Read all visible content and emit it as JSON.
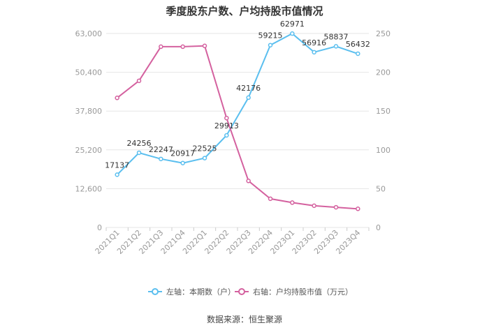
{
  "chart_data": {
    "type": "line",
    "title": "季度股东户数、户均持股市值情况",
    "categories": [
      "2021Q1",
      "2021Q2",
      "2021Q3",
      "2021Q4",
      "2022Q1",
      "2022Q2",
      "2022Q3",
      "2022Q4",
      "2023Q1",
      "2023Q2",
      "2023Q3",
      "2023Q4"
    ],
    "series": [
      {
        "name": "左轴：本期数（户）",
        "axis": "left",
        "color": "#5bbfef",
        "values": [
          17137,
          24256,
          22247,
          20917,
          22525,
          29913,
          42176,
          59215,
          62971,
          56916,
          58837,
          56432
        ],
        "labels": [
          "17137",
          "24256",
          "22247",
          "20917",
          "22525",
          "29913",
          "42176",
          "59215",
          "62971",
          "56916",
          "58837",
          "56432"
        ]
      },
      {
        "name": "右轴：户均持股市值（万元）",
        "axis": "right",
        "color": "#d4619f",
        "values": [
          167,
          189,
          233,
          233,
          234,
          141,
          60,
          37,
          32,
          28,
          26,
          24
        ]
      }
    ],
    "y_left": {
      "ylim": [
        0,
        63000
      ],
      "ticks": [
        0,
        12600,
        25200,
        37800,
        50400,
        63000
      ],
      "tick_labels": [
        "0",
        "12,600",
        "25,200",
        "37,800",
        "50,400",
        "63,000"
      ]
    },
    "y_right": {
      "ylim": [
        0,
        250
      ],
      "ticks": [
        0,
        50,
        100,
        150,
        200,
        250
      ],
      "tick_labels": [
        "0",
        "50",
        "100",
        "150",
        "200",
        "250"
      ]
    },
    "grid": true,
    "legend": "bottom-center",
    "source": "数据来源：恒生聚源"
  },
  "colors": {
    "left_series": "#5bbfef",
    "right_series": "#d4619f",
    "grid": "#e6e6e6",
    "axis_text": "#999999",
    "label_text": "#333333"
  }
}
